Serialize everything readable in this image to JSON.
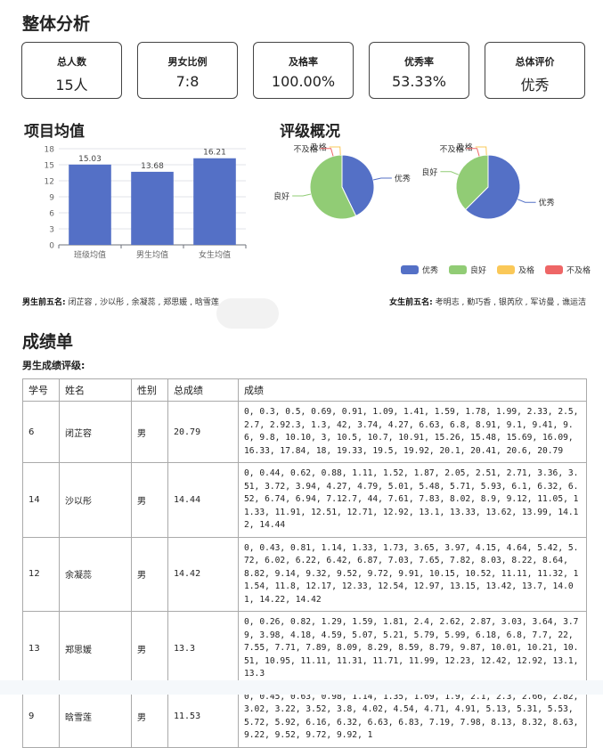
{
  "overall": {
    "title": "整体分析",
    "cards": [
      {
        "label": "总人数",
        "value": "15人"
      },
      {
        "label": "男女比例",
        "value": "7:8"
      },
      {
        "label": "及格率",
        "value": "100.00%"
      },
      {
        "label": "优秀率",
        "value": "53.33%"
      },
      {
        "label": "总体评价",
        "value": "优秀"
      }
    ]
  },
  "project_avg": {
    "title": "项目均值",
    "chart_data": {
      "type": "bar",
      "categories": [
        "班级均值",
        "男生均值",
        "女生均值"
      ],
      "values": [
        15.03,
        13.68,
        16.21
      ],
      "value_labels": [
        "15.03",
        "13.68",
        "16.21"
      ],
      "yticks": [
        0,
        3,
        6,
        9,
        12,
        15,
        18
      ],
      "ylim": [
        0,
        18
      ],
      "color": "#5470c6",
      "grid": true
    }
  },
  "rating": {
    "title": "评级概况",
    "legend": [
      {
        "name": "优秀",
        "color": "#5470c6"
      },
      {
        "name": "良好",
        "color": "#91cc75"
      },
      {
        "name": "及格",
        "color": "#fac858"
      },
      {
        "name": "不及格",
        "color": "#ee6666"
      }
    ],
    "chart_data": [
      {
        "type": "pie",
        "labels": [
          "优秀",
          "良好",
          "及格",
          "不及格"
        ],
        "values": [
          3,
          4,
          0,
          0
        ]
      },
      {
        "type": "pie",
        "labels": [
          "优秀",
          "良好",
          "及格",
          "不及格"
        ],
        "values": [
          5,
          3,
          0,
          0
        ]
      }
    ]
  },
  "top_male": {
    "label": "男生前五名:",
    "names": "闭芷容 , 沙以彤 , 余凝蕊 , 郑思媛 , 晗雪莲"
  },
  "top_female": {
    "label": "女生前五名:",
    "names": "考明志 , 勤巧香 , 银芮欣 , 军访曼 , 谯运洁"
  },
  "report": {
    "title": "成绩单",
    "male_label": "男生成绩评级:",
    "columns": [
      "学号",
      "姓名",
      "性别",
      "总成绩",
      "成绩"
    ],
    "rows": [
      {
        "id": "6",
        "name": "闭芷容",
        "gender": "男",
        "total": "20.79",
        "grades": "0, 0.3, 0.5, 0.69, 0.91, 1.09, 1.41, 1.59, 1.78, 1.99, 2.33, 2.5, 2.7, 2.92.3, 1.3, 42, 3.74, 4.27, 6.63, 6.8, 8.91, 9.1, 9.41, 9.6, 9.8, 10.10, 3, 10.5, 10.7, 10.91, 15.26, 15.48, 15.69, 16.09, 16.33, 17.84, 18, 19.33, 19.5, 19.92, 20.1, 20.41, 20.6, 20.79"
      },
      {
        "id": "14",
        "name": "沙以彤",
        "gender": "男",
        "total": "14.44",
        "grades": "0, 0.44, 0.62, 0.88, 1.11, 1.52, 1.87, 2.05, 2.51, 2.71, 3.36, 3.51, 3.72, 3.94, 4.27, 4.79, 5.01, 5.48, 5.71, 5.93, 6.1, 6.32, 6.52, 6.74, 6.94, 7.12.7, 44, 7.61, 7.83, 8.02, 8.9, 9.12, 11.05, 11.33, 11.91, 12.51, 12.71, 12.92, 13.1, 13.33, 13.62, 13.99, 14.12, 14.44"
      },
      {
        "id": "12",
        "name": "余凝蕊",
        "gender": "男",
        "total": "14.42",
        "grades": "0, 0.43, 0.81, 1.14, 1.33, 1.73, 3.65, 3.97, 4.15, 4.64, 5.42, 5.72, 6.02, 6.22, 6.42, 6.87, 7.03, 7.65, 7.82, 8.03, 8.22, 8.64, 8.82, 9.14, 9.32, 9.52, 9.72, 9.91, 10.15, 10.52, 11.11, 11.32, 11.54, 11.8, 12.17, 12.33, 12.54, 12.97, 13.15, 13.42, 13.7, 14.01, 14.22, 14.42"
      },
      {
        "id": "13",
        "name": "郑思媛",
        "gender": "男",
        "total": "13.3",
        "grades": "0, 0.26, 0.82, 1.29, 1.59, 1.81, 2.4, 2.62, 2.87, 3.03, 3.64, 3.79, 3.98, 4.18, 4.59, 5.07, 5.21, 5.79, 5.99, 6.18, 6.8, 7.7, 22, 7.55, 7.71, 7.89, 8.09, 8.29, 8.59, 8.79, 9.87, 10.01, 10.21, 10.51, 10.95, 11.11, 11.31, 11.71, 11.99, 12.23, 12.42, 12.92, 13.1, 13.3"
      },
      {
        "id": "9",
        "name": "晗雪莲",
        "gender": "男",
        "total": "11.53",
        "grades": "0, 0.45, 0.63, 0.98, 1.14, 1.35, 1.69, 1.9, 2.1, 2.3, 2.66, 2.82, 3.02, 3.22, 3.52, 3.8, 4.02, 4.54, 4.71, 4.91, 5.13, 5.31, 5.53, 5.72, 5.92, 6.16, 6.32, 6.63, 6.83, 7.19, 7.98, 8.13, 8.32, 8.63, 9.22, 9.52, 9.72, 9.92, 1"
      }
    ]
  }
}
